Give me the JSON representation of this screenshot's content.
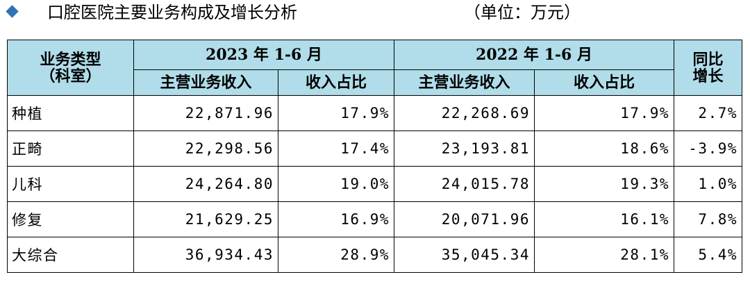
{
  "header": {
    "title": "口腔医院主要业务构成及增长分析",
    "unit": "（单位：万元）"
  },
  "table": {
    "headers": {
      "type": [
        "业务类型",
        "（科室）"
      ],
      "groups": [
        "2023 年 1-6 月",
        "2022 年 1-6 月"
      ],
      "sub": [
        "主营业务收入",
        "收入占比",
        "主营业务收入",
        "收入占比"
      ],
      "growth": [
        "同比",
        "增长"
      ]
    },
    "rows": [
      [
        "种植",
        "22,871.96",
        "17.9%",
        "22,268.69",
        "17.9%",
        "2.7%"
      ],
      [
        "正畸",
        "22,298.56",
        "17.4%",
        "23,193.81",
        "18.6%",
        "-3.9%"
      ],
      [
        "儿科",
        "24,264.80",
        "19.0%",
        "24,015.78",
        "19.3%",
        "1.0%"
      ],
      [
        "修复",
        "21,629.25",
        "16.9%",
        "20,071.96",
        "16.1%",
        "7.8%"
      ],
      [
        "大综合",
        "36,934.43",
        "28.9%",
        "35,045.34",
        "28.1%",
        "5.4%"
      ]
    ]
  }
}
